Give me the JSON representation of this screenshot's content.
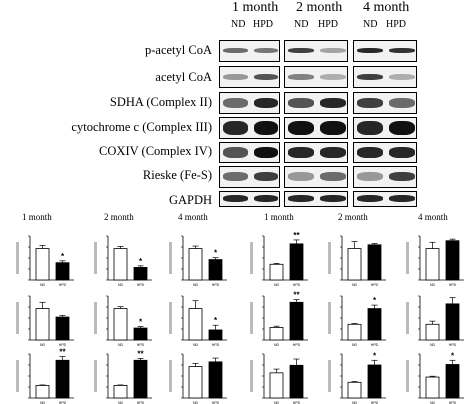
{
  "blot": {
    "columns": [
      {
        "month": "1 month",
        "lanes": [
          "ND",
          "HPD"
        ]
      },
      {
        "month": "2 month",
        "lanes": [
          "ND",
          "HPD"
        ]
      },
      {
        "month": "4 month",
        "lanes": [
          "ND",
          "HPD"
        ]
      }
    ],
    "rows": [
      "p-acetyl CoA",
      "acetyl CoA",
      "SDHA (Complex II)",
      "cytochrome c (Complex III)",
      "COXIV (Complex IV)",
      "Rieske (Fe-S)",
      "GAPDH"
    ]
  },
  "graphs": {
    "column_titles": [
      "1 month",
      "2 month",
      "4 month",
      "1 month",
      "2 month",
      "4 month"
    ],
    "category_labels": [
      "ND",
      "HPD"
    ],
    "y_tick_labels": [
      "",
      "",
      "",
      "",
      ""
    ],
    "bar_colors": {
      "ND": "#ffffff",
      "HPD": "#000000"
    }
  },
  "chart_data": [
    {
      "type": "bar",
      "row": 1,
      "col": 1,
      "categories": [
        "ND",
        "HPD"
      ],
      "values": [
        100,
        55
      ],
      "errors": [
        10,
        6
      ],
      "sig": "*"
    },
    {
      "type": "bar",
      "row": 1,
      "col": 2,
      "categories": [
        "ND",
        "HPD"
      ],
      "values": [
        100,
        40
      ],
      "errors": [
        7,
        5
      ],
      "sig": "*"
    },
    {
      "type": "bar",
      "row": 1,
      "col": 3,
      "categories": [
        "ND",
        "HPD"
      ],
      "values": [
        100,
        65
      ],
      "errors": [
        8,
        6
      ],
      "sig": "*"
    },
    {
      "type": "bar",
      "row": 1,
      "col": 4,
      "categories": [
        "ND",
        "HPD"
      ],
      "values": [
        100,
        230
      ],
      "errors": [
        6,
        25
      ],
      "sig": "**"
    },
    {
      "type": "bar",
      "row": 1,
      "col": 5,
      "categories": [
        "ND",
        "HPD"
      ],
      "values": [
        100,
        112
      ],
      "errors": [
        22,
        4
      ],
      "sig": ""
    },
    {
      "type": "bar",
      "row": 1,
      "col": 6,
      "categories": [
        "ND",
        "HPD"
      ],
      "values": [
        100,
        125
      ],
      "errors": [
        20,
        5
      ],
      "sig": ""
    },
    {
      "type": "bar",
      "row": 2,
      "col": 1,
      "categories": [
        "ND",
        "HPD"
      ],
      "values": [
        100,
        73
      ],
      "errors": [
        20,
        5
      ],
      "sig": ""
    },
    {
      "type": "bar",
      "row": 2,
      "col": 2,
      "categories": [
        "ND",
        "HPD"
      ],
      "values": [
        100,
        38
      ],
      "errors": [
        6,
        5
      ],
      "sig": "*"
    },
    {
      "type": "bar",
      "row": 2,
      "col": 3,
      "categories": [
        "ND",
        "HPD"
      ],
      "values": [
        100,
        32
      ],
      "errors": [
        25,
        15
      ],
      "sig": "*"
    },
    {
      "type": "bar",
      "row": 2,
      "col": 4,
      "categories": [
        "ND",
        "HPD"
      ],
      "values": [
        100,
        300
      ],
      "errors": [
        10,
        22
      ],
      "sig": "**"
    },
    {
      "type": "bar",
      "row": 2,
      "col": 5,
      "categories": [
        "ND",
        "HPD"
      ],
      "values": [
        100,
        200
      ],
      "errors": [
        5,
        22
      ],
      "sig": "*"
    },
    {
      "type": "bar",
      "row": 2,
      "col": 6,
      "categories": [
        "ND",
        "HPD"
      ],
      "values": [
        100,
        230
      ],
      "errors": [
        20,
        40
      ],
      "sig": ""
    },
    {
      "type": "bar",
      "row": 3,
      "col": 1,
      "categories": [
        "ND",
        "HPD"
      ],
      "values": [
        100,
        300
      ],
      "errors": [
        4,
        30
      ],
      "sig": "**"
    },
    {
      "type": "bar",
      "row": 3,
      "col": 2,
      "categories": [
        "ND",
        "HPD"
      ],
      "values": [
        100,
        300
      ],
      "errors": [
        4,
        15
      ],
      "sig": "**"
    },
    {
      "type": "bar",
      "row": 3,
      "col": 3,
      "categories": [
        "ND",
        "HPD"
      ],
      "values": [
        100,
        115
      ],
      "errors": [
        10,
        12
      ],
      "sig": ""
    },
    {
      "type": "bar",
      "row": 3,
      "col": 4,
      "categories": [
        "ND",
        "HPD"
      ],
      "values": [
        100,
        130
      ],
      "errors": [
        15,
        25
      ],
      "sig": ""
    },
    {
      "type": "bar",
      "row": 3,
      "col": 5,
      "categories": [
        "ND",
        "HPD"
      ],
      "values": [
        100,
        210
      ],
      "errors": [
        5,
        30
      ],
      "sig": "*"
    },
    {
      "type": "bar",
      "row": 3,
      "col": 6,
      "categories": [
        "ND",
        "HPD"
      ],
      "values": [
        100,
        160
      ],
      "errors": [
        4,
        20
      ],
      "sig": "*"
    }
  ]
}
